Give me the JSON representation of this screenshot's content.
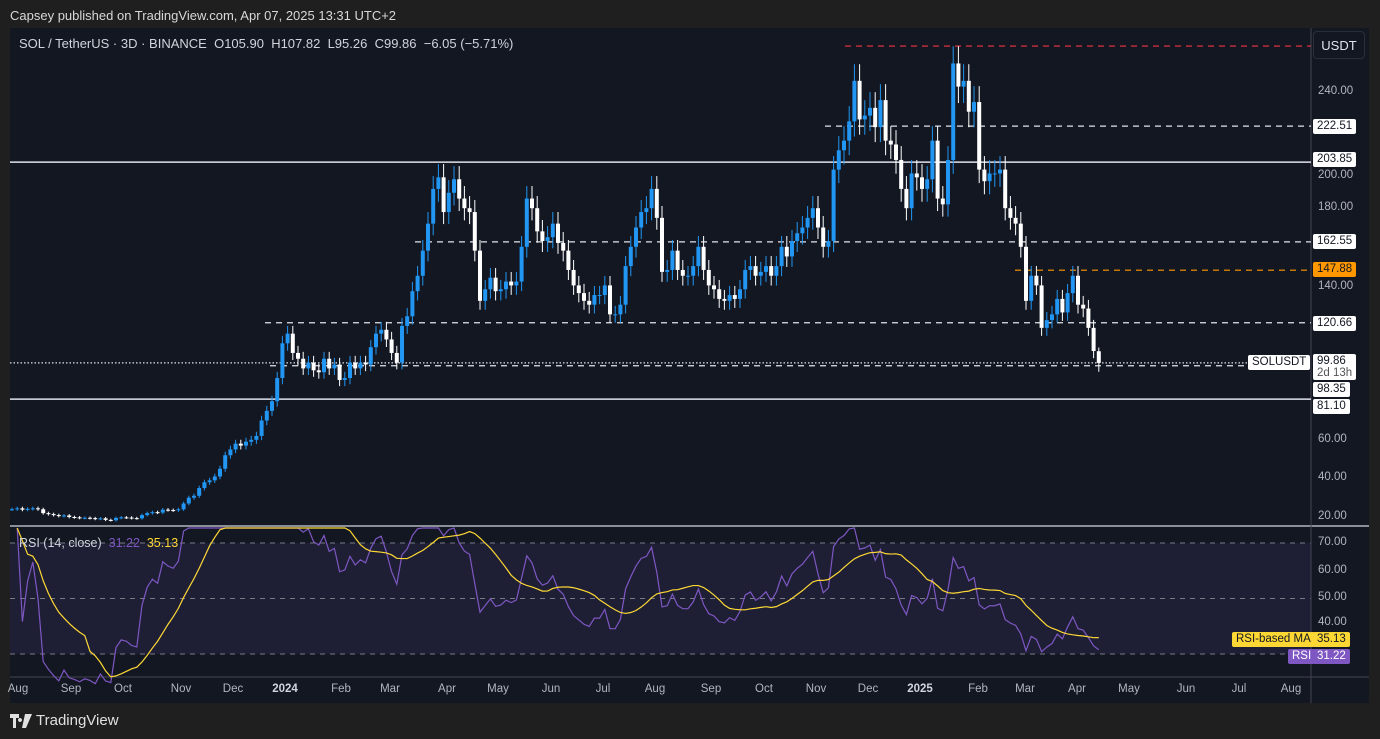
{
  "published": "Capsey published on TradingView.com, Apr 07, 2025 13:31 UTC+2",
  "legend": {
    "symbol": "SOL / TetherUS · 3D · BINANCE",
    "open": "O105.90",
    "high": "H107.82",
    "low": "L95.26",
    "close": "C99.86",
    "change": "−6.05 (−5.71%)"
  },
  "currency_button": "USDT",
  "rsi_legend": {
    "name": "RSI (14, close)",
    "rsi": "31.22",
    "ma": "35.13"
  },
  "rsi_labels": {
    "ma_name": "RSI-based MA",
    "ma_value": "35.13",
    "rsi_name": "RSI",
    "rsi_value": "31.22"
  },
  "price_ticks": [
    "240.00",
    "200.00",
    "180.00",
    "140.00",
    "60.00",
    "40.00",
    "20.00"
  ],
  "rsi_ticks": [
    "70.00",
    "60.00",
    "50.00",
    "40.00"
  ],
  "price_labels": {
    "l222": "222.51",
    "l203": "203.85",
    "l162": "162.55",
    "l147": "147.88",
    "l120": "120.66",
    "symbol": "SOLUSDT",
    "last": "99.86",
    "countdown": "2d 13h",
    "l98": "98.35",
    "l81": "81.10"
  },
  "time_axis": [
    "Aug",
    "Sep",
    "Oct",
    "Nov",
    "Dec",
    "2024",
    "Feb",
    "Mar",
    "Apr",
    "May",
    "Jun",
    "Jul",
    "Aug",
    "Sep",
    "Oct",
    "Nov",
    "Dec",
    "2025",
    "Feb",
    "Mar",
    "Apr",
    "May",
    "Jun",
    "Jul",
    "Aug"
  ],
  "brand": "TradingView",
  "colors": {
    "up": "#2196f3",
    "down": "#ffffff",
    "rsi": "#7e57c2",
    "ma": "#fdd835",
    "orange": "#ff9800",
    "red": "#f23645",
    "bg": "#131722"
  },
  "chart_data": {
    "type": "candlestick",
    "title": "SOL / TetherUS · 3D · BINANCE",
    "interval": "3D",
    "ylim": [
      15,
      275
    ],
    "closes": [
      24,
      24.5,
      23.8,
      24.2,
      24.5,
      24,
      22,
      21.5,
      21,
      20.5,
      20.8,
      20,
      19.8,
      19.5,
      19.6,
      19.4,
      19,
      19.3,
      18.5,
      18.3,
      19.5,
      19.8,
      19.7,
      19.4,
      19.3,
      21,
      22,
      22.5,
      22.3,
      23.8,
      23.6,
      23.5,
      24,
      27,
      30,
      31,
      35,
      38,
      39,
      41,
      45,
      52,
      55,
      58,
      57,
      59,
      60,
      62,
      70,
      75,
      80,
      92,
      110,
      115,
      105,
      102,
      97,
      100,
      96,
      95,
      102,
      97,
      99,
      91,
      92,
      100,
      97,
      100,
      99,
      108,
      115,
      117,
      112,
      105,
      100,
      119,
      124,
      137,
      145,
      158,
      172,
      190,
      196,
      178,
      188,
      195,
      185,
      180,
      178,
      158,
      132,
      138,
      144,
      137,
      138,
      142,
      140,
      142,
      160,
      185,
      180,
      168,
      163,
      165,
      172,
      162,
      158,
      148,
      140,
      136,
      132,
      130,
      135,
      135,
      140,
      125,
      125,
      130,
      150,
      160,
      170,
      178,
      180,
      190,
      175,
      147,
      148,
      158,
      148,
      145,
      145,
      150,
      160,
      148,
      140,
      138,
      133,
      132,
      135,
      133,
      138,
      148,
      150,
      145,
      147,
      150,
      145,
      150,
      160,
      155,
      163,
      167,
      170,
      175,
      180,
      170,
      160,
      163,
      200,
      210,
      215,
      225,
      246,
      226,
      228,
      232,
      222,
      236,
      215,
      213,
      205,
      190,
      180,
      198,
      196,
      190,
      195,
      215,
      185,
      182,
      205,
      255,
      243,
      246,
      230,
      235,
      200,
      194,
      198,
      198,
      200,
      180,
      175,
      172,
      160,
      132,
      145,
      140,
      118,
      122,
      125,
      133,
      126,
      136,
      145,
      130,
      128,
      118,
      106,
      99.86
    ],
    "last_candle": {
      "open": 105.9,
      "high": 107.82,
      "low": 95.26,
      "close": 99.86
    },
    "levels": [
      {
        "value": 264,
        "style": "dashed",
        "color": "red"
      },
      {
        "value": 222.51,
        "style": "dashed",
        "color": "white"
      },
      {
        "value": 203.85,
        "style": "solid",
        "color": "white"
      },
      {
        "value": 162.55,
        "style": "dashed",
        "color": "white"
      },
      {
        "value": 147.88,
        "style": "dashed",
        "color": "orange"
      },
      {
        "value": 120.66,
        "style": "dashed",
        "color": "white"
      },
      {
        "value": 99.86,
        "style": "dotted",
        "color": "white"
      },
      {
        "value": 98.35,
        "style": "dashed",
        "color": "white"
      },
      {
        "value": 81.1,
        "style": "solid",
        "color": "white"
      }
    ],
    "rsi": {
      "period": 14,
      "ma_period": 14,
      "bands": [
        70,
        50,
        30
      ],
      "last_rsi": 31.22,
      "last_ma": 35.13
    }
  }
}
